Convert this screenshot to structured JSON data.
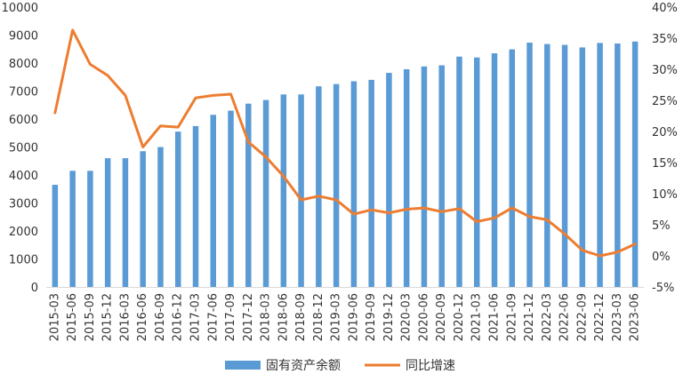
{
  "chart_data": {
    "type": "bar",
    "categories": [
      "2015-03",
      "2015-06",
      "2015-09",
      "2015-12",
      "2016-03",
      "2016-06",
      "2016-09",
      "2016-12",
      "2017-03",
      "2017-06",
      "2017-09",
      "2017-12",
      "2018-03",
      "2018-06",
      "2018-09",
      "2018-12",
      "2019-03",
      "2019-06",
      "2019-09",
      "2019-12",
      "2020-03",
      "2020-06",
      "2020-09",
      "2020-12",
      "2021-03",
      "2021-06",
      "2021-09",
      "2021-12",
      "2022-03",
      "2022-06",
      "2022-09",
      "2022-12",
      "2023-03",
      "2023-06"
    ],
    "series": [
      {
        "name": "固有资产余额",
        "type": "bar",
        "axis": "left",
        "color": "#5B9BD5",
        "values": [
          3650,
          4150,
          4150,
          4600,
          4600,
          4850,
          5000,
          5550,
          5750,
          6150,
          6300,
          6550,
          6680,
          6880,
          6880,
          7170,
          7250,
          7350,
          7400,
          7650,
          7780,
          7880,
          7920,
          8230,
          8200,
          8350,
          8490,
          8730,
          8680,
          8650,
          8560,
          8720,
          8700,
          8770
        ]
      },
      {
        "name": "同比增速",
        "type": "line",
        "axis": "right",
        "color": "#ED7D31",
        "values": [
          23.0,
          36.3,
          30.8,
          29.0,
          25.8,
          17.5,
          20.9,
          20.7,
          25.4,
          25.8,
          26.0,
          18.3,
          15.9,
          12.8,
          9.0,
          9.6,
          9.0,
          6.7,
          7.4,
          6.9,
          7.5,
          7.7,
          7.1,
          7.6,
          5.5,
          6.1,
          7.7,
          6.3,
          5.8,
          3.5,
          0.9,
          0.0,
          0.6,
          1.9
        ]
      }
    ],
    "ylim_left": [
      0,
      10000
    ],
    "ylim_right": [
      -5,
      40
    ],
    "yticks_left": [
      "0",
      "1000",
      "2000",
      "3000",
      "4000",
      "5000",
      "6000",
      "7000",
      "8000",
      "9000",
      "10000"
    ],
    "yticks_right": [
      "-5%",
      "0%",
      "5%",
      "10%",
      "15%",
      "20%",
      "25%",
      "30%",
      "35%",
      "40%"
    ],
    "grid": false,
    "legend_position": "bottom"
  }
}
